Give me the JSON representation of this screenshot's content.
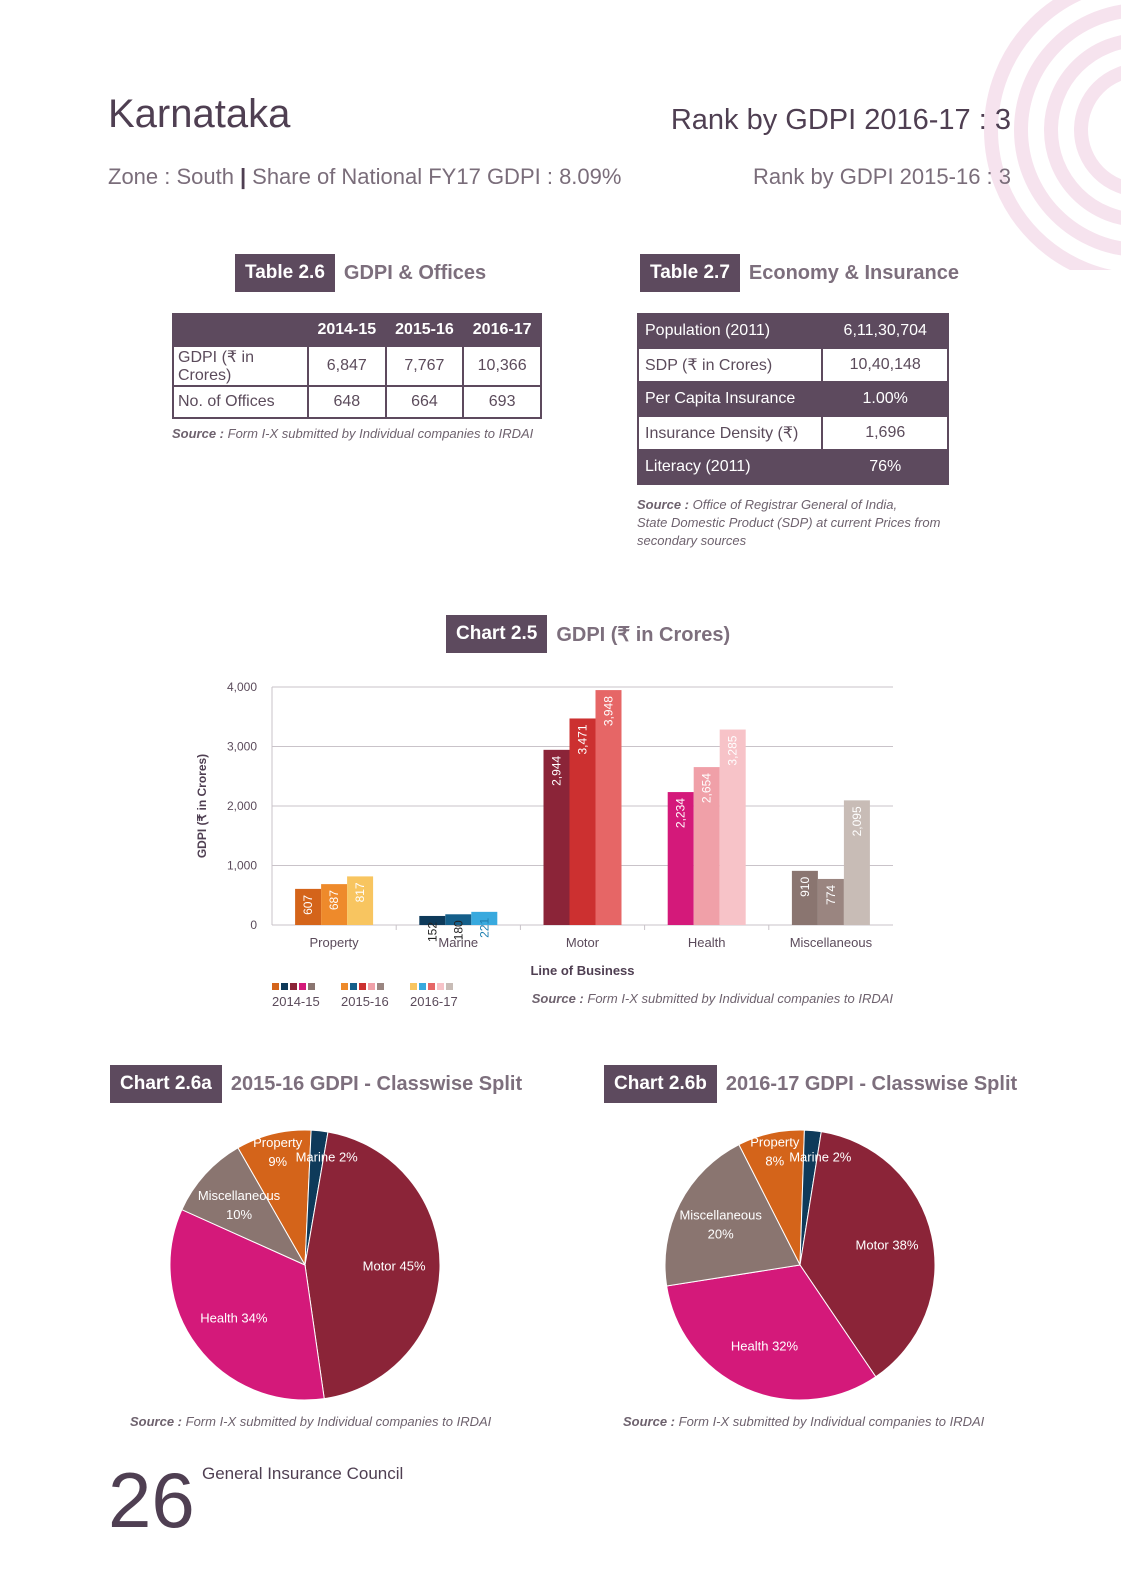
{
  "header": {
    "state": "Karnataka",
    "rank_current": "Rank by GDPI 2016-17 : 3",
    "zone": "Zone : South",
    "separator": "|",
    "share": "Share of National FY17 GDPI : 8.09%",
    "rank_previous": "Rank by GDPI 2015-16 : 3"
  },
  "table26": {
    "tag": "Table 2.6",
    "title": "GDPI & Offices",
    "columns": [
      "",
      "2014-15",
      "2015-16",
      "2016-17"
    ],
    "rows": [
      [
        "GDPI (₹ in Crores)",
        "6,847",
        "7,767",
        "10,366"
      ],
      [
        "No. of Offices",
        "648",
        "664",
        "693"
      ]
    ],
    "source_label": "Source :",
    "source_text": " Form I-X submitted by Individual companies to IRDAI"
  },
  "table27": {
    "tag": "Table 2.7",
    "title": "Economy & Insurance",
    "rows": [
      [
        "Population (2011)",
        "6,11,30,704"
      ],
      [
        "SDP (₹ in Crores)",
        "10,40,148"
      ],
      [
        "Per Capita Insurance",
        "1.00%"
      ],
      [
        "Insurance Density (₹)",
        "1,696"
      ],
      [
        "Literacy (2011)",
        "76%"
      ]
    ],
    "source_label": "Source :",
    "source_lines": [
      " Office of Registrar General of India,",
      "State Domestic Product (SDP) at current Prices from",
      "secondary sources"
    ]
  },
  "chart25_header": {
    "tag": "Chart 2.5",
    "title": "GDPI (₹ in Crores)"
  },
  "pie_a_header": {
    "tag": "Chart 2.6a",
    "title": "2015-16 GDPI - Classwise Split"
  },
  "pie_b_header": {
    "tag": "Chart 2.6b",
    "title": "2016-17 GDPI - Classwise Split"
  },
  "chart_data": [
    {
      "type": "bar",
      "title": "GDPI (₹ in Crores)",
      "xlabel": "Line of Business",
      "ylabel": "GDPI (₹ in Crores)",
      "ylim": [
        0,
        4000
      ],
      "yticks": [
        "0",
        "1,000",
        "2,000",
        "3,000",
        "4,000"
      ],
      "grid": true,
      "categories": [
        "Property",
        "Marine",
        "Motor",
        "Health",
        "Miscellaneous"
      ],
      "series": [
        {
          "name": "2014-15",
          "values": [
            607,
            152,
            2944,
            2234,
            910
          ],
          "labels": [
            "607",
            "152",
            "2,944",
            "2,234",
            "910"
          ]
        },
        {
          "name": "2015-16",
          "values": [
            687,
            180,
            3471,
            2654,
            774
          ],
          "labels": [
            "687",
            "180",
            "3,471",
            "2,654",
            "774"
          ]
        },
        {
          "name": "2016-17",
          "values": [
            817,
            221,
            3948,
            3285,
            2095
          ],
          "labels": [
            "817",
            "221",
            "3,948",
            "3,285",
            "2,095"
          ]
        }
      ],
      "colors": [
        [
          "#d4641a",
          "#0e3a5a",
          "#8b2438",
          "#d4197a",
          "#8a7570"
        ],
        [
          "#ee8a2b",
          "#145f8a",
          "#cc3030",
          "#f0a0a8",
          "#9a8580"
        ],
        [
          "#f8c560",
          "#38a9de",
          "#e66666",
          "#f7c3c8",
          "#c8bcb6"
        ]
      ],
      "label_colors": [
        [
          "#ffffff",
          "#222222",
          "#ffffff",
          "#ffffff",
          "#ffffff"
        ],
        [
          "#ffffff",
          "#222222",
          "#ffffff",
          "#ffffff",
          "#ffffff"
        ],
        [
          "#ffffff",
          "#1e7fb0",
          "#ffffff",
          "#ffffff",
          "#ffffff"
        ]
      ],
      "legend_placement": "bottom-left",
      "source_label": "Source :",
      "source_text": " Form I-X submitted by Individual companies to IRDAI"
    },
    {
      "type": "pie",
      "title": "2015-16 GDPI - Classwise Split",
      "slices": [
        {
          "name": "Property",
          "value": 9,
          "label_lines": [
            "Property",
            "9%"
          ],
          "color": "#d4641a"
        },
        {
          "name": "Marine",
          "value": 2,
          "label_lines": [
            "Marine 2%"
          ],
          "color": "#0e3a5a"
        },
        {
          "name": "Motor",
          "value": 45,
          "label_lines": [
            "Motor 45%"
          ],
          "color": "#8b2438"
        },
        {
          "name": "Health",
          "value": 34,
          "label_lines": [
            "Health 34%"
          ],
          "color": "#d4197a"
        },
        {
          "name": "Miscellaneous",
          "value": 10,
          "label_lines": [
            "Miscellaneous",
            "10%"
          ],
          "color": "#8a7570"
        }
      ],
      "source_label": "Source :",
      "source_text": " Form I-X submitted by Individual companies to IRDAI"
    },
    {
      "type": "pie",
      "title": "2016-17 GDPI - Classwise Split",
      "slices": [
        {
          "name": "Property",
          "value": 8,
          "label_lines": [
            "Property",
            "8%"
          ],
          "color": "#d4641a"
        },
        {
          "name": "Marine",
          "value": 2,
          "label_lines": [
            "Marine 2%"
          ],
          "color": "#0e3a5a"
        },
        {
          "name": "Motor",
          "value": 38,
          "label_lines": [
            "Motor 38%"
          ],
          "color": "#8b2438"
        },
        {
          "name": "Health",
          "value": 32,
          "label_lines": [
            "Health 32%"
          ],
          "color": "#d4197a"
        },
        {
          "name": "Miscellaneous",
          "value": 20,
          "label_lines": [
            "Miscellaneous",
            "20%"
          ],
          "color": "#8a7570"
        }
      ],
      "source_label": "Source :",
      "source_text": " Form I-X submitted by Individual companies to IRDAI"
    }
  ],
  "footer": {
    "page_number": "26",
    "publisher": "General Insurance Council"
  }
}
